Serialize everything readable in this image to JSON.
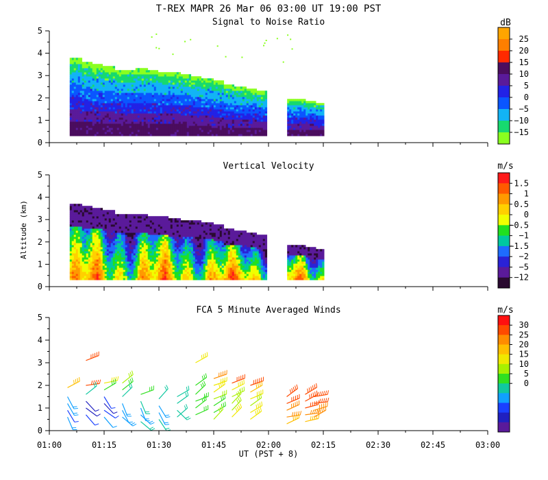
{
  "figure_title": "T-REX   MAPR 26 Mar 06   03:00 UT   19:00   PST",
  "x_axis": {
    "label": "UT  (PST + 8)",
    "range_hours": [
      1.0,
      3.0
    ],
    "tick_labels": [
      "01:00",
      "01:15",
      "01:30",
      "01:45",
      "02:00",
      "02:15",
      "02:30",
      "02:45",
      "03:00"
    ]
  },
  "y_axis": {
    "label": "Altitude (km)",
    "range_km": [
      0,
      5
    ],
    "tick_labels": [
      "0",
      "1",
      "2",
      "3",
      "4",
      "5"
    ]
  },
  "chart_data": [
    {
      "type": "heatmap",
      "title": "Signal to Noise Ratio",
      "unit": "dB",
      "xlim": [
        1.0,
        3.0
      ],
      "ylim": [
        0,
        5
      ],
      "colorbar_labels": [
        "25",
        "20",
        "15",
        "10",
        "5",
        "0",
        "−5",
        "−10",
        "−15"
      ],
      "colorbar_colors": [
        "#ffa500",
        "#ff7f00",
        "#ff2a00",
        "#4b0d5e",
        "#5a1a9a",
        "#2222e6",
        "#0a56ff",
        "#12b4f5",
        "#17d96f",
        "#8aff1f"
      ],
      "segments": [
        {
          "start": 1.093,
          "end": 1.99,
          "base_km": 0.3,
          "top_km": [
            3.8,
            3.6,
            3.5,
            3.4,
            3.3,
            3.3,
            3.35,
            3.3,
            3.2,
            3.2,
            3.1,
            3.0,
            2.9,
            2.8,
            2.6,
            2.5,
            2.4,
            2.3
          ]
        },
        {
          "start": 2.085,
          "end": 2.25,
          "base_km": 0.3,
          "top_km": [
            2.0,
            2.0,
            1.9,
            1.8
          ]
        }
      ]
    },
    {
      "type": "heatmap",
      "title": "Vertical Velocity",
      "unit": "m/s",
      "xlim": [
        1.0,
        3.0
      ],
      "ylim": [
        0,
        5
      ],
      "colorbar_labels": [
        "1.5",
        "1",
        "0.5",
        "0",
        "−0.5",
        "−1",
        "−1.5",
        "−2",
        "−5",
        "−12"
      ],
      "colorbar_colors": [
        "#ff1a1a",
        "#ff5a00",
        "#ff9a00",
        "#ffd000",
        "#f0ff00",
        "#20e020",
        "#00c8a0",
        "#1e6cff",
        "#2a22d6",
        "#5a1a9a",
        "#2a0a30"
      ],
      "segments": [
        {
          "start": 1.093,
          "end": 1.99,
          "base_km": 0.3,
          "top_km": [
            3.7,
            3.6,
            3.5,
            3.4,
            3.3,
            3.3,
            3.3,
            3.2,
            3.2,
            3.1,
            3.0,
            3.0,
            2.9,
            2.8,
            2.6,
            2.5,
            2.4,
            2.3
          ]
        },
        {
          "start": 2.085,
          "end": 2.25,
          "base_km": 0.3,
          "top_km": [
            1.9,
            1.9,
            1.8,
            1.7
          ]
        }
      ]
    },
    {
      "type": "scatter",
      "title": "FCA 5 Minute Averaged Winds",
      "unit": "m/s",
      "xlim": [
        1.0,
        3.0
      ],
      "ylim": [
        0,
        5
      ],
      "colorbar_labels": [
        "30",
        "25",
        "20",
        "15",
        "10",
        "5",
        "0"
      ],
      "colorbar_colors": [
        "#ff1010",
        "#ff4a00",
        "#ff8c00",
        "#ffbf00",
        "#f0e800",
        "#a8f000",
        "#30e020",
        "#10c8a0",
        "#10a0ff",
        "#1a40ff",
        "#2020c0",
        "#5a1a9a"
      ],
      "winds": [
        {
          "t": 1.083,
          "alt": [
            1.9,
            1.5,
            1.2,
            0.9,
            0.6
          ],
          "speed": [
            22,
            9,
            8,
            6,
            8
          ]
        },
        {
          "t": 1.167,
          "alt": [
            2.0,
            1.6,
            1.3,
            1.0,
            0.7,
            3.1
          ],
          "speed": [
            26,
            12,
            4,
            3,
            5,
            26
          ]
        },
        {
          "t": 1.25,
          "alt": [
            2.1,
            1.8,
            1.5,
            1.2,
            0.9,
            0.6
          ],
          "speed": [
            20,
            14,
            6,
            4,
            5,
            7
          ]
        },
        {
          "t": 1.333,
          "alt": [
            2.1,
            1.8,
            1.5,
            1.2,
            0.9,
            0.6
          ],
          "speed": [
            17,
            14,
            11,
            9,
            7,
            8
          ]
        },
        {
          "t": 1.417,
          "alt": [
            1.6,
            1.3,
            1.0,
            0.7,
            0.4
          ],
          "speed": [
            13,
            10,
            8,
            9,
            10
          ]
        },
        {
          "t": 1.5,
          "alt": [
            1.4,
            1.1,
            0.8,
            0.5
          ],
          "speed": [
            11,
            9,
            8,
            10
          ]
        },
        {
          "t": 1.583,
          "alt": [
            1.5,
            1.2,
            0.9,
            0.6
          ],
          "speed": [
            12,
            11,
            10,
            11
          ]
        },
        {
          "t": 1.667,
          "alt": [
            3.0,
            2.0,
            1.6,
            1.3,
            1.0,
            0.7
          ],
          "speed": [
            20,
            15,
            14,
            13,
            13,
            14
          ]
        },
        {
          "t": 1.75,
          "alt": [
            2.3,
            2.0,
            1.7,
            1.4,
            1.1,
            0.8,
            0.5
          ],
          "speed": [
            24,
            20,
            18,
            16,
            15,
            15,
            16
          ]
        },
        {
          "t": 1.833,
          "alt": [
            2.1,
            1.8,
            1.5,
            1.2,
            0.9,
            0.6
          ],
          "speed": [
            26,
            18,
            16,
            16,
            17,
            18
          ]
        },
        {
          "t": 1.917,
          "alt": [
            2.0,
            1.7,
            1.4,
            1.1,
            0.8,
            0.5
          ],
          "speed": [
            28,
            22,
            18,
            16,
            18,
            20
          ]
        },
        {
          "t": 2.083,
          "alt": [
            1.5,
            1.2,
            0.9,
            0.6,
            0.3
          ],
          "speed": [
            27,
            26,
            25,
            24,
            22
          ]
        },
        {
          "t": 2.167,
          "alt": [
            1.6,
            1.3,
            1.0,
            0.7,
            0.4
          ],
          "speed": [
            28,
            27,
            26,
            25,
            23
          ]
        },
        {
          "t": 2.208,
          "alt": [
            1.5,
            1.2,
            0.9,
            0.6
          ],
          "speed": [
            28,
            26,
            25,
            24
          ]
        }
      ]
    }
  ]
}
